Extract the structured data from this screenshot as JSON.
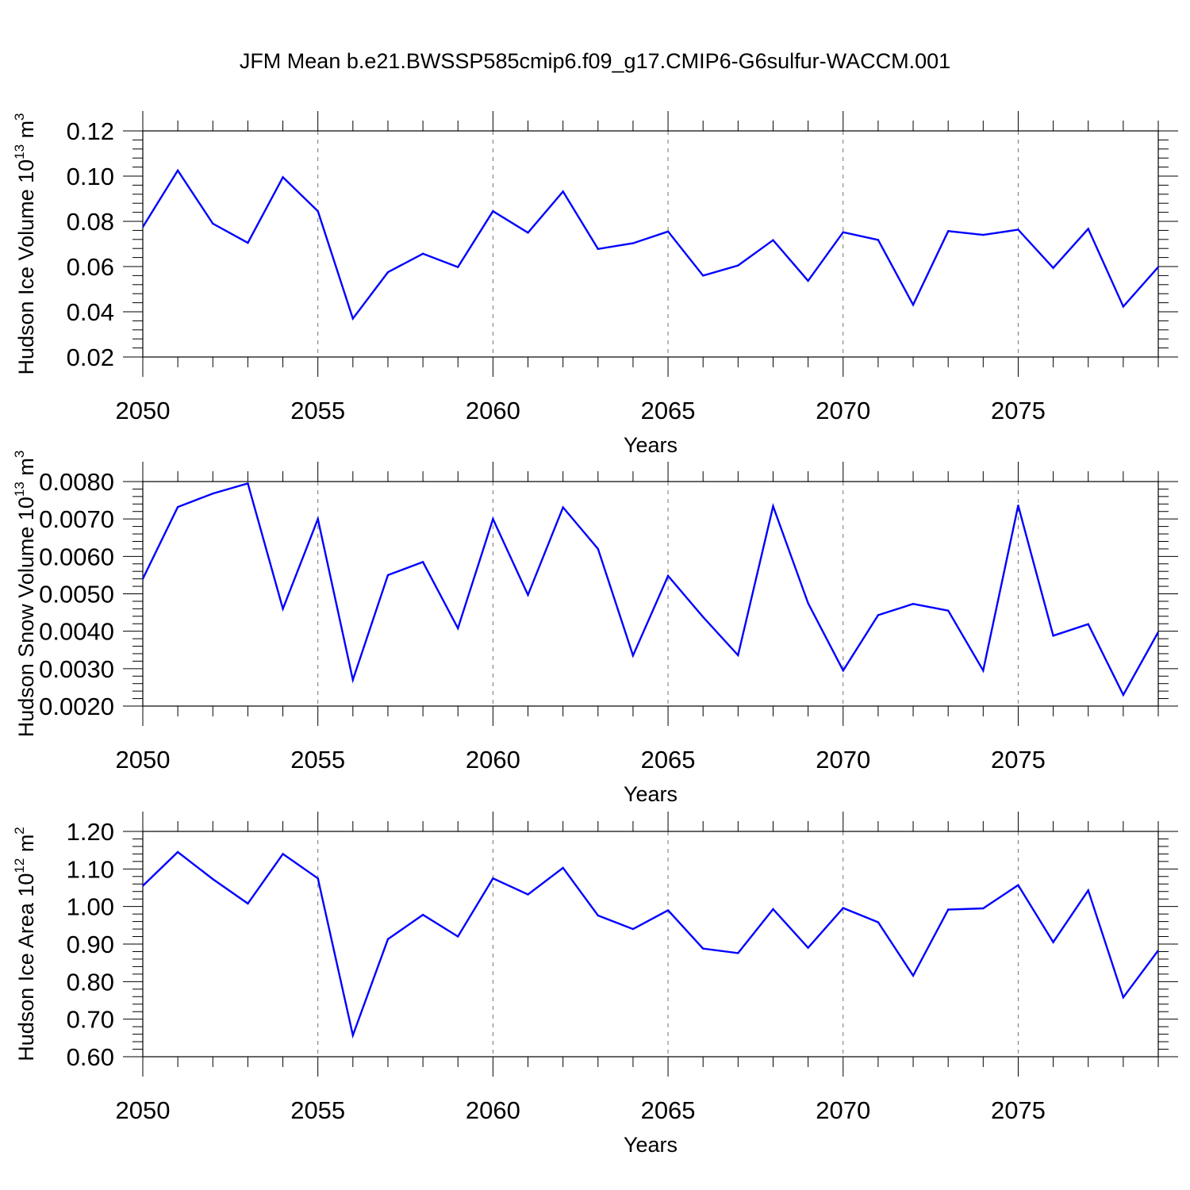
{
  "title": "JFM Mean b.e21.BWSSP585cmip6.f09_g17.CMIP6-G6sulfur-WACCM.001",
  "chart_data": [
    {
      "type": "line",
      "xlabel": "Years",
      "ylabel": "Hudson Ice Volume 10",
      "ylabel_sup": "13",
      "ylabel_unit": " m",
      "ylabel_unit_sup": "3",
      "xlim": [
        2050,
        2079
      ],
      "ylim": [
        0.02,
        0.12
      ],
      "yticks": [
        0.02,
        0.04,
        0.06,
        0.08,
        0.1,
        0.12
      ],
      "ytick_labels": [
        "0.02",
        "0.04",
        "0.06",
        "0.08",
        "0.10",
        "0.12"
      ],
      "xticks": [
        2050,
        2055,
        2060,
        2065,
        2070,
        2075
      ],
      "xtick_labels": [
        "2050",
        "2055",
        "2060",
        "2065",
        "2070",
        "2075"
      ],
      "grid": "vertical dashed at major x ticks",
      "line_color": "#0000ff",
      "series": [
        {
          "x": [
            2050,
            2051,
            2052,
            2053,
            2054,
            2055,
            2056,
            2057,
            2058,
            2059,
            2060,
            2061,
            2062,
            2063,
            2064,
            2065,
            2066,
            2067,
            2068,
            2069,
            2070,
            2071,
            2072,
            2073,
            2074,
            2075,
            2076,
            2077,
            2078,
            2079
          ],
          "values": [
            0.0775,
            0.1025,
            0.079,
            0.0705,
            0.0995,
            0.0845,
            0.037,
            0.0575,
            0.0657,
            0.0598,
            0.0845,
            0.075,
            0.0932,
            0.0678,
            0.0703,
            0.0755,
            0.056,
            0.0605,
            0.0717,
            0.0537,
            0.0752,
            0.0718,
            0.0431,
            0.0757,
            0.074,
            0.0763,
            0.0594,
            0.0767,
            0.0423,
            0.0598
          ]
        }
      ]
    },
    {
      "type": "line",
      "xlabel": "Years",
      "ylabel": "Hudson Snow Volume 10",
      "ylabel_sup": "13",
      "ylabel_unit": " m",
      "ylabel_unit_sup": "3",
      "xlim": [
        2050,
        2079
      ],
      "ylim": [
        0.002,
        0.008
      ],
      "yticks": [
        0.002,
        0.003,
        0.004,
        0.005,
        0.006,
        0.007,
        0.008
      ],
      "ytick_labels": [
        "0.0020",
        "0.0030",
        "0.0040",
        "0.0050",
        "0.0060",
        "0.0070",
        "0.0080"
      ],
      "xticks": [
        2050,
        2055,
        2060,
        2065,
        2070,
        2075
      ],
      "xtick_labels": [
        "2050",
        "2055",
        "2060",
        "2065",
        "2070",
        "2075"
      ],
      "grid": "vertical dashed at major x ticks",
      "line_color": "#0000ff",
      "series": [
        {
          "x": [
            2050,
            2051,
            2052,
            2053,
            2054,
            2055,
            2056,
            2057,
            2058,
            2059,
            2060,
            2061,
            2062,
            2063,
            2064,
            2065,
            2066,
            2067,
            2068,
            2069,
            2070,
            2071,
            2072,
            2073,
            2074,
            2075,
            2076,
            2077,
            2078,
            2079
          ],
          "values": [
            0.0054,
            0.00732,
            0.00768,
            0.00795,
            0.0046,
            0.007,
            0.0027,
            0.0055,
            0.00585,
            0.00408,
            0.007,
            0.00497,
            0.00731,
            0.0062,
            0.00335,
            0.00548,
            0.00438,
            0.00336,
            0.00734,
            0.00475,
            0.00295,
            0.00443,
            0.00473,
            0.00455,
            0.00295,
            0.00736,
            0.00388,
            0.00419,
            0.0023,
            0.00398
          ]
        }
      ]
    },
    {
      "type": "line",
      "xlabel": "Years",
      "ylabel": "Hudson Ice Area 10",
      "ylabel_sup": "12",
      "ylabel_unit": " m",
      "ylabel_unit_sup": "2",
      "xlim": [
        2050,
        2079
      ],
      "ylim": [
        0.6,
        1.2
      ],
      "yticks": [
        0.6,
        0.7,
        0.8,
        0.9,
        1.0,
        1.1,
        1.2
      ],
      "ytick_labels": [
        "0.60",
        "0.70",
        "0.80",
        "0.90",
        "1.00",
        "1.10",
        "1.20"
      ],
      "xticks": [
        2050,
        2055,
        2060,
        2065,
        2070,
        2075
      ],
      "xtick_labels": [
        "2050",
        "2055",
        "2060",
        "2065",
        "2070",
        "2075"
      ],
      "grid": "vertical dashed at major x ticks",
      "line_color": "#0000ff",
      "series": [
        {
          "x": [
            2050,
            2051,
            2052,
            2053,
            2054,
            2055,
            2056,
            2057,
            2058,
            2059,
            2060,
            2061,
            2062,
            2063,
            2064,
            2065,
            2066,
            2067,
            2068,
            2069,
            2070,
            2071,
            2072,
            2073,
            2074,
            2075,
            2076,
            2077,
            2078,
            2079
          ],
          "values": [
            1.055,
            1.145,
            1.073,
            1.008,
            1.14,
            1.075,
            0.657,
            0.913,
            0.978,
            0.92,
            1.075,
            1.032,
            1.103,
            0.976,
            0.94,
            0.99,
            0.888,
            0.876,
            0.993,
            0.89,
            0.996,
            0.958,
            0.816,
            0.992,
            0.995,
            1.057,
            0.905,
            1.043,
            0.758,
            0.883
          ]
        }
      ]
    }
  ]
}
